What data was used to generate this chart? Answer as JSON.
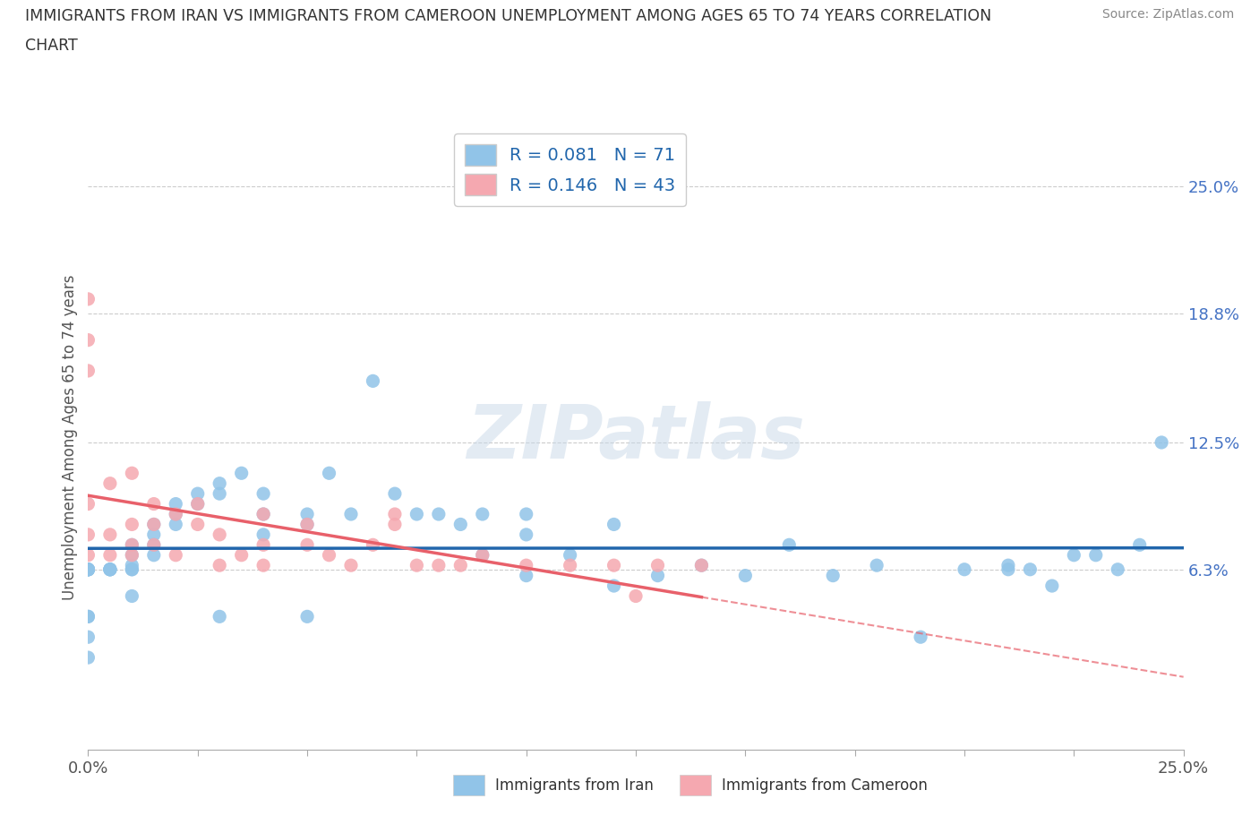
{
  "title_line1": "IMMIGRANTS FROM IRAN VS IMMIGRANTS FROM CAMEROON UNEMPLOYMENT AMONG AGES 65 TO 74 YEARS CORRELATION",
  "title_line2": "CHART",
  "source": "Source: ZipAtlas.com",
  "ylabel": "Unemployment Among Ages 65 to 74 years",
  "x_min": 0.0,
  "x_max": 0.25,
  "y_min": -0.025,
  "y_max": 0.28,
  "y_ticks": [
    0.063,
    0.125,
    0.188,
    0.25
  ],
  "y_tick_labels": [
    "6.3%",
    "12.5%",
    "18.8%",
    "25.0%"
  ],
  "iran_color": "#91c4e8",
  "cameroon_color": "#f5a8b0",
  "iran_trend_color": "#2166ac",
  "cameroon_trend_color": "#e8606a",
  "legend_text_color": "#2166ac",
  "iran_R": 0.081,
  "iran_N": 71,
  "cameroon_R": 0.146,
  "cameroon_N": 43,
  "watermark": "ZIPatlas",
  "iran_x": [
    0.0,
    0.0,
    0.0,
    0.0,
    0.0,
    0.0,
    0.0,
    0.0,
    0.0,
    0.0,
    0.005,
    0.005,
    0.005,
    0.005,
    0.01,
    0.01,
    0.01,
    0.01,
    0.01,
    0.01,
    0.015,
    0.015,
    0.015,
    0.015,
    0.02,
    0.02,
    0.02,
    0.025,
    0.025,
    0.03,
    0.03,
    0.03,
    0.035,
    0.04,
    0.04,
    0.04,
    0.05,
    0.05,
    0.05,
    0.055,
    0.06,
    0.065,
    0.07,
    0.075,
    0.08,
    0.085,
    0.09,
    0.09,
    0.1,
    0.1,
    0.1,
    0.11,
    0.12,
    0.12,
    0.13,
    0.14,
    0.15,
    0.16,
    0.17,
    0.18,
    0.19,
    0.2,
    0.21,
    0.22,
    0.225,
    0.23,
    0.235,
    0.24,
    0.245,
    0.215,
    0.21
  ],
  "iran_y": [
    0.063,
    0.063,
    0.063,
    0.063,
    0.063,
    0.063,
    0.04,
    0.04,
    0.03,
    0.02,
    0.063,
    0.063,
    0.063,
    0.063,
    0.075,
    0.07,
    0.065,
    0.063,
    0.063,
    0.05,
    0.085,
    0.08,
    0.075,
    0.07,
    0.095,
    0.09,
    0.085,
    0.1,
    0.095,
    0.105,
    0.1,
    0.04,
    0.11,
    0.1,
    0.09,
    0.08,
    0.09,
    0.085,
    0.04,
    0.11,
    0.09,
    0.155,
    0.1,
    0.09,
    0.09,
    0.085,
    0.09,
    0.07,
    0.09,
    0.08,
    0.06,
    0.07,
    0.085,
    0.055,
    0.06,
    0.065,
    0.06,
    0.075,
    0.06,
    0.065,
    0.03,
    0.063,
    0.065,
    0.055,
    0.07,
    0.07,
    0.063,
    0.075,
    0.125,
    0.063,
    0.063
  ],
  "cameroon_x": [
    0.0,
    0.0,
    0.0,
    0.0,
    0.0,
    0.0,
    0.005,
    0.005,
    0.005,
    0.01,
    0.01,
    0.01,
    0.01,
    0.015,
    0.015,
    0.015,
    0.02,
    0.02,
    0.025,
    0.025,
    0.03,
    0.03,
    0.035,
    0.04,
    0.04,
    0.04,
    0.05,
    0.05,
    0.055,
    0.06,
    0.065,
    0.07,
    0.07,
    0.075,
    0.08,
    0.085,
    0.09,
    0.1,
    0.11,
    0.12,
    0.125,
    0.13,
    0.14
  ],
  "cameroon_y": [
    0.07,
    0.08,
    0.095,
    0.16,
    0.175,
    0.195,
    0.07,
    0.08,
    0.105,
    0.07,
    0.075,
    0.085,
    0.11,
    0.075,
    0.085,
    0.095,
    0.07,
    0.09,
    0.085,
    0.095,
    0.065,
    0.08,
    0.07,
    0.065,
    0.075,
    0.09,
    0.075,
    0.085,
    0.07,
    0.065,
    0.075,
    0.085,
    0.09,
    0.065,
    0.065,
    0.065,
    0.07,
    0.065,
    0.065,
    0.065,
    0.05,
    0.065,
    0.065
  ]
}
